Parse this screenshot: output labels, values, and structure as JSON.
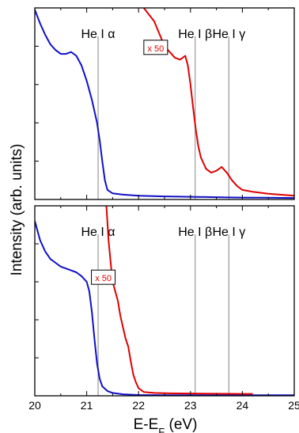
{
  "chart_data": {
    "type": "line",
    "ylabel": "Intensity (arb. units)",
    "xlabel_main": "E-E",
    "xlabel_sub": "F",
    "xlabel_unit": " (eV)",
    "xlim": [
      20,
      25
    ],
    "x_ticks": [
      "20",
      "21",
      "22",
      "23",
      "24",
      "25"
    ],
    "colors": {
      "raw": "#1010c8",
      "scaled": "#e00000",
      "ref_line": "#999999"
    },
    "panels": [
      {
        "id": "top",
        "ylim": [
          0,
          100
        ],
        "ref_lines": [
          {
            "x": 21.22,
            "label": "He I α"
          },
          {
            "x": 23.09,
            "label": "He I β"
          },
          {
            "x": 23.74,
            "label": "He I γ"
          }
        ],
        "multiplier": {
          "text": "x 50",
          "x": 22.33,
          "y": 79
        },
        "series": [
          {
            "key": "raw",
            "x": [
              20.0,
              20.1,
              20.2,
              20.3,
              20.4,
              20.5,
              20.6,
              20.7,
              20.8,
              20.9,
              21.0,
              21.1,
              21.2,
              21.25,
              21.3,
              21.35,
              21.4,
              21.5,
              21.7,
              22.0,
              22.5,
              23.0,
              23.5,
              24.0,
              24.5,
              25.0
            ],
            "y": [
              99,
              92,
              86,
              81,
              78,
              76,
              76,
              77,
              75,
              70,
              62,
              52,
              40,
              31,
              20,
              10,
              5,
              3.2,
              2.5,
              2.0,
              1.6,
              1.4,
              1.2,
              1.0,
              0.9,
              0.8
            ]
          },
          {
            "key": "scaled",
            "x": [
              22.1,
              22.3,
              22.5,
              22.7,
              22.8,
              22.9,
              22.95,
              23.0,
              23.05,
              23.1,
              23.15,
              23.2,
              23.3,
              23.4,
              23.5,
              23.6,
              23.7,
              23.8,
              23.9,
              24.0,
              24.2,
              24.5,
              25.0
            ],
            "y": [
              100,
              93,
              80,
              74,
              73,
              75,
              70,
              60,
              48,
              37,
              28,
              22,
              16,
              14,
              15,
              17,
              14,
              10,
              7,
              5,
              4,
              3,
              2
            ]
          }
        ]
      },
      {
        "id": "bottom",
        "ylim": [
          0,
          100
        ],
        "ref_lines": [
          {
            "x": 21.22,
            "label": "He I α"
          },
          {
            "x": 23.09,
            "label": "He I β"
          },
          {
            "x": 23.74,
            "label": "He I γ"
          }
        ],
        "multiplier": {
          "text": "x 50",
          "x": 21.32,
          "y": 62
        },
        "series": [
          {
            "key": "raw",
            "x": [
              20.0,
              20.1,
              20.2,
              20.3,
              20.4,
              20.5,
              20.6,
              20.7,
              20.8,
              20.9,
              21.0,
              21.05,
              21.1,
              21.15,
              21.2,
              21.25,
              21.3,
              21.4,
              21.5,
              21.7,
              22.0,
              22.5,
              23.0,
              23.5,
              24.0,
              24.5,
              25.0
            ],
            "y": [
              92,
              82,
              76,
              72,
              70,
              68,
              67,
              66,
              65,
              63,
              60,
              55,
              44,
              30,
              17,
              9,
              5,
              2.5,
              1.5,
              0.8,
              0.4,
              0.3,
              0.3,
              0.3,
              0.3,
              0.3,
              0.3
            ],
            "x_end": 21.9
          },
          {
            "key": "scaled",
            "x": [
              21.38,
              21.42,
              21.47,
              21.5,
              21.55,
              21.6,
              21.65,
              21.7,
              21.75,
              21.8,
              21.85,
              21.9,
              21.95,
              22.0,
              22.1,
              22.3,
              22.6,
              23.0,
              23.5,
              24.0,
              24.2
            ],
            "y": [
              100,
              82,
              68,
              60,
              55,
              50,
              42,
              36,
              30,
              26,
              18,
              11,
              7,
              4,
              2,
              1.5,
              1.3,
              1.2,
              1.1,
              1.0,
              1.0
            ]
          }
        ]
      }
    ]
  }
}
